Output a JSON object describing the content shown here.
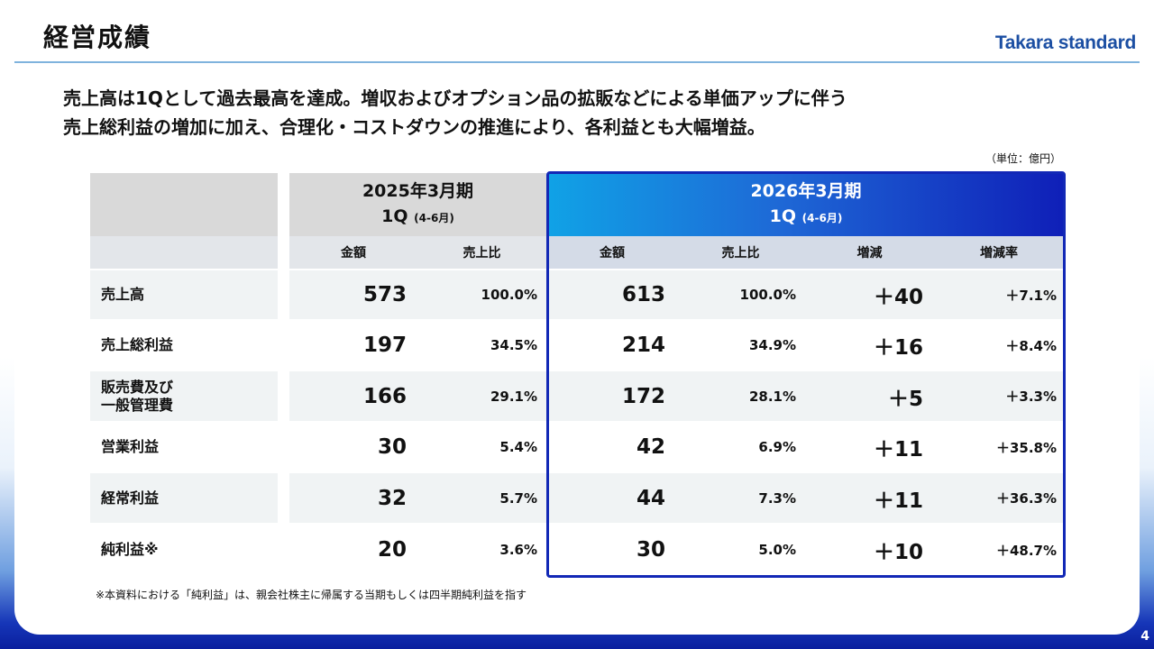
{
  "page_title": "経営成績",
  "logo_text": "Takara standard",
  "headline": [
    "売上高は1Qとして過去最高を達成。増収およびオプション品の拡販などによる単価アップに伴う",
    "売上総利益の増加に加え、合理化・コストダウンの推進により、各利益とも大幅増益。"
  ],
  "unit_note": "（単位：億円）",
  "table": {
    "prev_period": {
      "title": "2025年3月期",
      "quarter": "1Q",
      "range": "(4-6月)"
    },
    "cur_period": {
      "title": "2026年3月期",
      "quarter": "1Q",
      "range": "(4-6月)"
    },
    "columns": {
      "prev_amount": "金額",
      "prev_ratio": "売上比",
      "cur_amount": "金額",
      "cur_ratio": "売上比",
      "change": "増減",
      "change_rate": "増減率"
    },
    "rows": [
      {
        "label_lines": [
          "売上高"
        ],
        "prev_amount": "573",
        "prev_ratio": "100.0%",
        "cur_amount": "613",
        "cur_ratio": "100.0%",
        "change": "＋40",
        "change_rate": "＋7.1%"
      },
      {
        "label_lines": [
          "売上総利益"
        ],
        "prev_amount": "197",
        "prev_ratio": "34.5%",
        "cur_amount": "214",
        "cur_ratio": "34.9%",
        "change": "＋16",
        "change_rate": "＋8.4%"
      },
      {
        "label_lines": [
          "販売費及び",
          "一般管理費"
        ],
        "prev_amount": "166",
        "prev_ratio": "29.1%",
        "cur_amount": "172",
        "cur_ratio": "28.1%",
        "change": "＋5",
        "change_rate": "＋3.3%"
      },
      {
        "label_lines": [
          "営業利益"
        ],
        "prev_amount": "30",
        "prev_ratio": "5.4%",
        "cur_amount": "42",
        "cur_ratio": "6.9%",
        "change": "＋11",
        "change_rate": "＋35.8%"
      },
      {
        "label_lines": [
          "経常利益"
        ],
        "prev_amount": "32",
        "prev_ratio": "5.7%",
        "cur_amount": "44",
        "cur_ratio": "7.3%",
        "change": "＋11",
        "change_rate": "＋36.3%"
      },
      {
        "label_lines": [
          "純利益※"
        ],
        "prev_amount": "20",
        "prev_ratio": "3.6%",
        "cur_amount": "30",
        "cur_ratio": "5.0%",
        "change": "＋10",
        "change_rate": "＋48.7%"
      }
    ]
  },
  "footnote": "※本資料における「純利益」は、親会社株主に帰属する当期もしくは四半期純利益を指す",
  "page_number": "4"
}
